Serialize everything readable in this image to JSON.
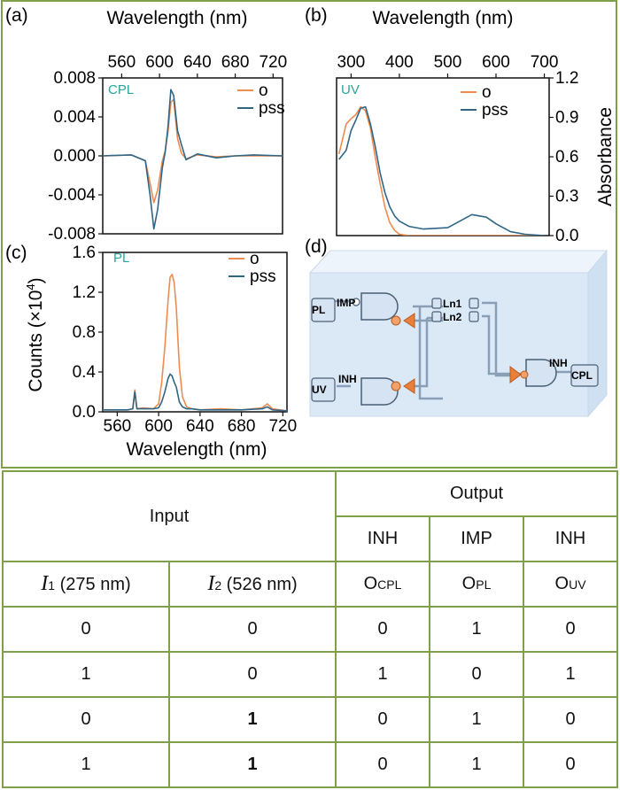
{
  "colors": {
    "o": "#f08b4f",
    "pss": "#2f6686",
    "frame": "#7ea04a",
    "label_teal": "#2aa39a",
    "gate_orange": "#e8803c",
    "gate_blue": "#d6e3f2",
    "box": "#dbe8f6"
  },
  "panels": {
    "a": {
      "tag": "(a)",
      "name": "CPL",
      "top_axis_label": "Wavelength (nm)",
      "xticks": [
        "560",
        "600",
        "640",
        "680",
        "720"
      ],
      "yticks": [
        "0.008",
        "0.004",
        "0.000",
        "-0.004",
        "-0.008"
      ],
      "legend": [
        "o",
        "pss"
      ]
    },
    "b": {
      "tag": "(b)",
      "name": "UV",
      "top_axis_label": "Wavelength (nm)",
      "xticks": [
        "300",
        "400",
        "500",
        "600",
        "700"
      ],
      "right_axis_label": "Absorbance",
      "yticks": [
        "1.2",
        "0.9",
        "0.6",
        "0.3",
        "0.0"
      ],
      "legend": [
        "o",
        "pss"
      ]
    },
    "c": {
      "tag": "(c)",
      "name": "PL",
      "bottom_axis_label": "Wavelength (nm)",
      "xticks": [
        "560",
        "600",
        "640",
        "680",
        "720"
      ],
      "ylabel_main": "Counts (×10",
      "ylabel_exp": "4",
      "ylabel_end": ")",
      "yticks": [
        "1.6",
        "1.2",
        "0.8",
        "0.4",
        "0.0"
      ],
      "legend": [
        "o",
        "pss"
      ]
    },
    "d": {
      "tag": "(d)",
      "io": {
        "pl": "PL",
        "uv": "UV",
        "cpl": "CPL"
      },
      "gates": {
        "imp": "IMP",
        "inh1": "INH",
        "inh2": "INH"
      },
      "ln": {
        "ln1": "Ln1",
        "ln2": "Ln2"
      }
    }
  },
  "chart_data": [
    {
      "type": "line",
      "title": "CPL",
      "xlabel": "Wavelength (nm)",
      "ylabel": "",
      "xlim": [
        540,
        730
      ],
      "ylim": [
        -0.008,
        0.008
      ],
      "series": [
        {
          "name": "o",
          "x": [
            540,
            570,
            585,
            590,
            594,
            598,
            603,
            606,
            609,
            612,
            615,
            619,
            623,
            628,
            640,
            660,
            680,
            700,
            730
          ],
          "y": [
            0,
            0.0001,
            -0.0005,
            -0.0028,
            -0.0048,
            -0.0035,
            -0.0005,
            0.0005,
            0.0025,
            0.0055,
            0.0058,
            0.0018,
            0.0003,
            -0.0003,
            0.0001,
            -0.0001,
            0,
            0,
            0
          ]
        },
        {
          "name": "pss",
          "x": [
            540,
            570,
            585,
            590,
            594,
            598,
            603,
            606,
            609,
            612,
            615,
            619,
            623,
            628,
            640,
            660,
            680,
            700,
            730
          ],
          "y": [
            0,
            0.0001,
            -0.0005,
            -0.004,
            -0.0075,
            -0.0055,
            -0.0012,
            0.0004,
            0.003,
            0.0068,
            0.0062,
            0.0026,
            0.0012,
            -0.0004,
            0.0002,
            -0.0002,
            0,
            0.0001,
            0
          ]
        }
      ]
    },
    {
      "type": "line",
      "title": "UV",
      "xlabel": "Wavelength (nm)",
      "ylabel": "Absorbance",
      "xlim": [
        270,
        710
      ],
      "ylim": [
        0,
        1.2
      ],
      "series": [
        {
          "name": "o",
          "x": [
            275,
            290,
            300,
            310,
            320,
            330,
            340,
            350,
            360,
            370,
            380,
            390,
            400,
            420,
            450,
            500,
            550,
            600,
            650,
            700
          ],
          "y": [
            0.62,
            0.85,
            0.89,
            0.92,
            0.98,
            0.95,
            0.82,
            0.6,
            0.4,
            0.22,
            0.1,
            0.04,
            0.01,
            0,
            0,
            0,
            0,
            0,
            0,
            0
          ]
        },
        {
          "name": "pss",
          "x": [
            275,
            290,
            300,
            310,
            320,
            330,
            340,
            350,
            360,
            370,
            380,
            390,
            400,
            420,
            450,
            500,
            520,
            550,
            580,
            600,
            630,
            660,
            700
          ],
          "y": [
            0.58,
            0.65,
            0.8,
            0.88,
            0.97,
            0.98,
            0.85,
            0.68,
            0.48,
            0.33,
            0.22,
            0.15,
            0.11,
            0.07,
            0.05,
            0.06,
            0.1,
            0.16,
            0.14,
            0.09,
            0.03,
            0.01,
            0
          ]
        }
      ]
    },
    {
      "type": "line",
      "title": "PL",
      "xlabel": "Wavelength (nm)",
      "ylabel": "Counts (×10⁴)",
      "xlim": [
        546,
        724
      ],
      "ylim": [
        0,
        1.6
      ],
      "series": [
        {
          "name": "o",
          "x": [
            546,
            570,
            575,
            577,
            579,
            585,
            595,
            600,
            603,
            606,
            609,
            611,
            613,
            615,
            617,
            620,
            623,
            627,
            632,
            640,
            660,
            680,
            700,
            705,
            710,
            724
          ],
          "y": [
            0.02,
            0.02,
            0.03,
            0.22,
            0.03,
            0.04,
            0.03,
            0.08,
            0.3,
            0.65,
            1.1,
            1.35,
            1.38,
            1.3,
            1.05,
            0.45,
            0.15,
            0.05,
            0.03,
            0.02,
            0.03,
            0.02,
            0.04,
            0.08,
            0.03,
            0.01
          ]
        },
        {
          "name": "pss",
          "x": [
            546,
            570,
            575,
            577,
            579,
            585,
            595,
            600,
            603,
            606,
            609,
            611,
            613,
            615,
            617,
            620,
            623,
            627,
            632,
            640,
            660,
            680,
            700,
            705,
            710,
            724
          ],
          "y": [
            0.02,
            0.02,
            0.03,
            0.2,
            0.03,
            0.03,
            0.03,
            0.04,
            0.1,
            0.2,
            0.33,
            0.38,
            0.36,
            0.3,
            0.25,
            0.1,
            0.05,
            0.03,
            0.03,
            0.02,
            0.02,
            0.02,
            0.03,
            0.05,
            0.02,
            0.01
          ]
        }
      ]
    }
  ],
  "table": {
    "input_header": "Input",
    "output_header": "Output",
    "gate_row": [
      "INH",
      "IMP",
      "INH"
    ],
    "col_i1_sym": "I",
    "col_i1_sub": "1",
    "col_i1_rest": " (275 nm)",
    "col_i2_sym": "I",
    "col_i2_sub": "2",
    "col_i2_rest": " (526 nm)",
    "out_cols": [
      {
        "sym": "O",
        "sub": "CPL"
      },
      {
        "sym": "O",
        "sub": "PL"
      },
      {
        "sym": "O",
        "sub": "UV"
      }
    ],
    "rows": [
      [
        "0",
        "0",
        "0",
        "1",
        "0"
      ],
      [
        "1",
        "0",
        "1",
        "0",
        "1"
      ],
      [
        "0",
        "1",
        "0",
        "1",
        "0"
      ],
      [
        "1",
        "1",
        "0",
        "1",
        "0"
      ]
    ]
  }
}
